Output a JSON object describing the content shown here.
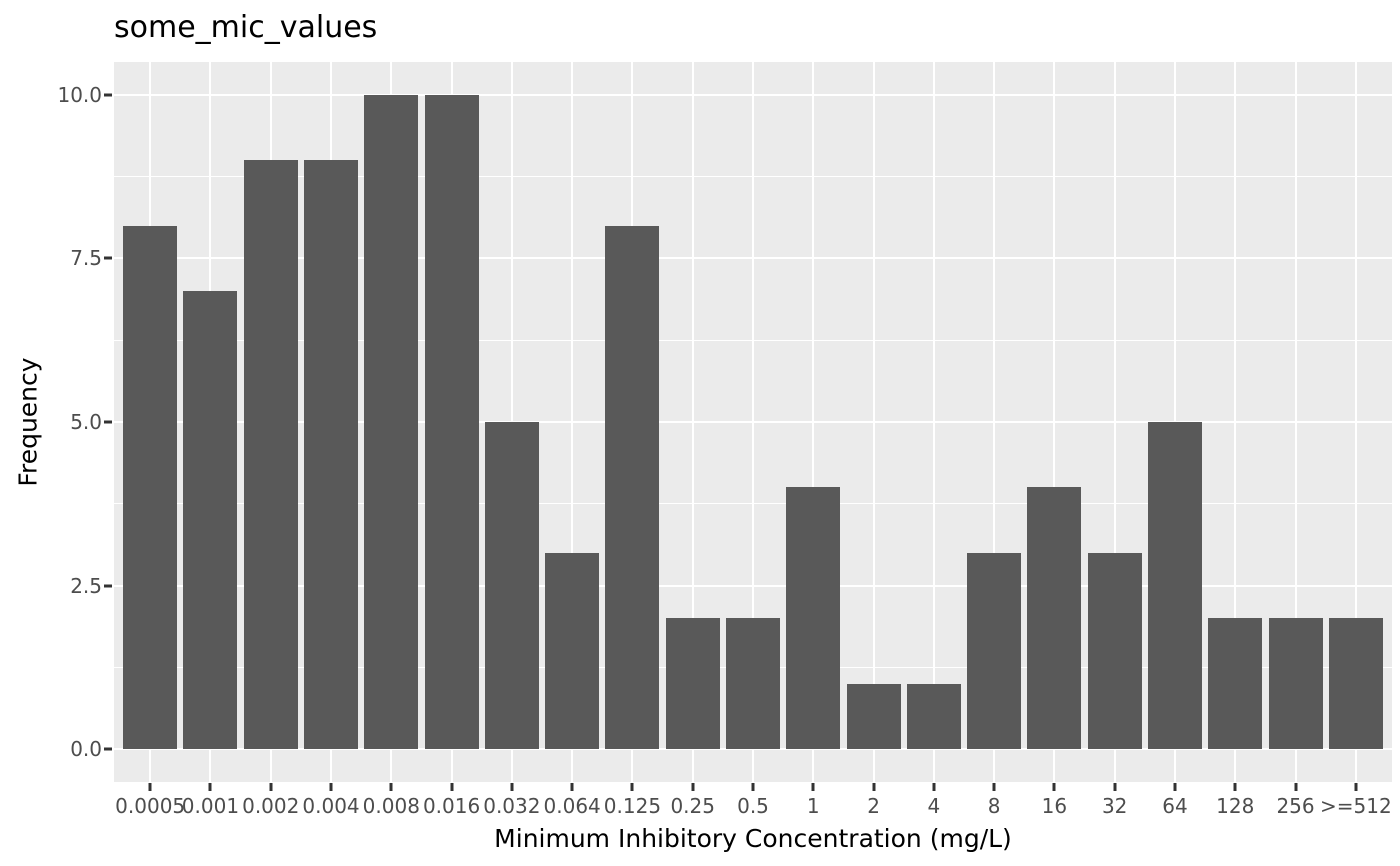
{
  "title": "some_mic_values",
  "chart_data": {
    "type": "bar",
    "title": "some_mic_values",
    "xlabel": "Minimum Inhibitory Concentration (mg/L)",
    "ylabel": "Frequency",
    "categories": [
      "0.0005",
      "0.001",
      "0.002",
      "0.004",
      "0.008",
      "0.016",
      "0.032",
      "0.064",
      "0.125",
      "0.25",
      "0.5",
      "1",
      "2",
      "4",
      "8",
      "16",
      "32",
      "64",
      "128",
      "256",
      ">=512"
    ],
    "values": [
      8,
      7,
      9,
      9,
      10,
      10,
      5,
      3,
      8,
      2,
      2,
      4,
      1,
      1,
      3,
      4,
      3,
      5,
      2,
      2,
      2
    ],
    "yticks": [
      0.0,
      2.5,
      5.0,
      7.5,
      10.0
    ],
    "ytick_labels": [
      "0.0",
      "2.5",
      "5.0",
      "7.5",
      "10.0"
    ],
    "minor_yticks": [
      1.25,
      3.75,
      6.25,
      8.75
    ],
    "ylim": [
      -0.5,
      10.5
    ],
    "grid": "major-and-minor",
    "legend": "none",
    "bar_width_fraction": 0.9,
    "colors": {
      "bar_fill": "#595959",
      "panel_background": "#EBEBEB",
      "grid_major": "#FFFFFF",
      "grid_minor": "#FFFFFF",
      "tick_label": "#4D4D4D",
      "tick_mark": "#333333",
      "axis_title": "#000000",
      "title": "#000000",
      "figure_background": "#FFFFFF"
    }
  }
}
